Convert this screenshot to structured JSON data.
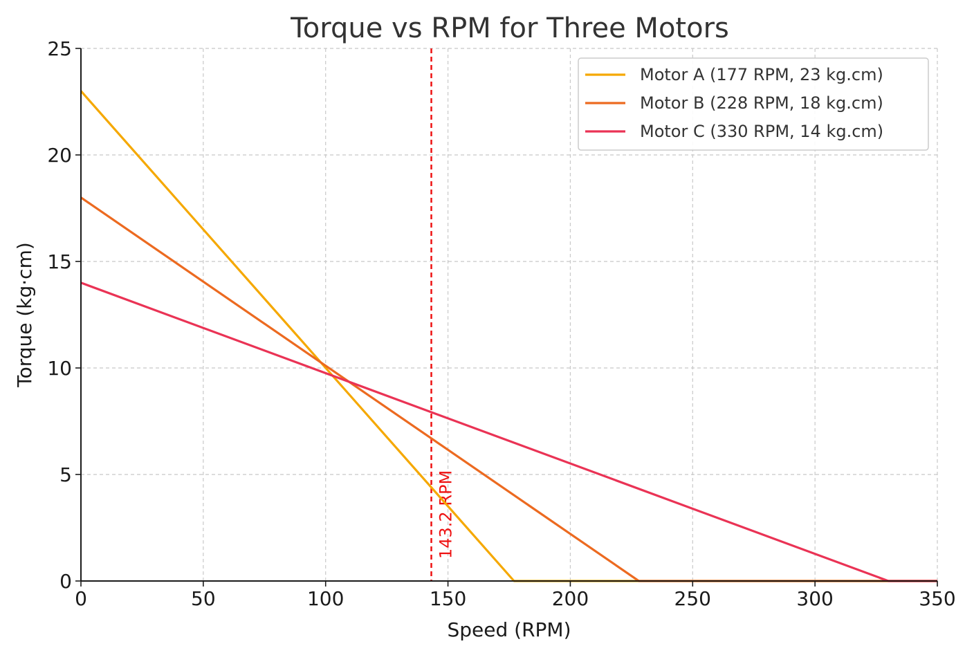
{
  "chart_data": {
    "type": "line",
    "title": "Torque vs RPM for Three Motors",
    "xlabel": "Speed (RPM)",
    "ylabel": "Torque (kg·cm)",
    "xlim": [
      0,
      350
    ],
    "ylim": [
      0,
      25
    ],
    "xticks": [
      "0",
      "50",
      "100",
      "150",
      "200",
      "250",
      "300",
      "350"
    ],
    "yticks": [
      "0",
      "5",
      "10",
      "15",
      "20",
      "25"
    ],
    "grid": true,
    "legend_position": "top-right",
    "series": [
      {
        "name": "Motor A (177 RPM, 23 kg.cm)",
        "color": "#f5a800",
        "x": [
          0,
          177,
          350
        ],
        "y": [
          23,
          0,
          0
        ]
      },
      {
        "name": "Motor B (228 RPM, 18 kg.cm)",
        "color": "#ec6a20",
        "x": [
          0,
          228,
          350
        ],
        "y": [
          18,
          0,
          0
        ]
      },
      {
        "name": "Motor C (330 RPM, 14 kg.cm)",
        "color": "#ea3355",
        "x": [
          0,
          330,
          350
        ],
        "y": [
          14,
          0,
          0
        ]
      }
    ],
    "reference_line": {
      "x": 143.2,
      "label": "143.2 RPM",
      "color": "#ee1111"
    }
  }
}
